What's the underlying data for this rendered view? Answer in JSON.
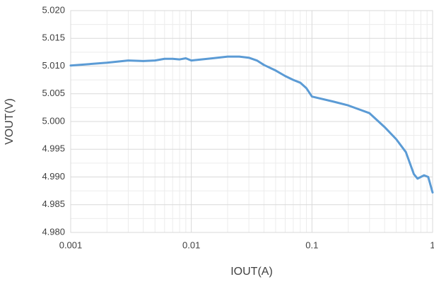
{
  "chart_data": {
    "type": "line",
    "x_label": "IOUT(A)",
    "y_label": "VOUT(V)",
    "x": [
      0.001,
      0.002,
      0.003,
      0.004,
      0.005,
      0.006,
      0.007,
      0.008,
      0.009,
      0.01,
      0.015,
      0.02,
      0.025,
      0.03,
      0.035,
      0.04,
      0.05,
      0.06,
      0.07,
      0.08,
      0.09,
      0.1,
      0.15,
      0.2,
      0.3,
      0.4,
      0.5,
      0.6,
      0.7,
      0.75,
      0.85,
      0.92,
      1
    ],
    "series": [
      {
        "color": "#5b9bd5",
        "values": [
          5.0101,
          5.0106,
          5.011,
          5.0109,
          5.011,
          5.0113,
          5.0113,
          5.0112,
          5.0114,
          5.011,
          5.0114,
          5.0117,
          5.0117,
          5.0115,
          5.011,
          5.0102,
          5.0092,
          5.0082,
          5.0075,
          5.007,
          5.006,
          5.0045,
          5.0036,
          5.0029,
          5.0015,
          4.999,
          4.9968,
          4.9945,
          4.9905,
          4.9897,
          4.9903,
          4.99,
          4.9872
        ]
      }
    ],
    "xlog": true,
    "xlim": [
      0.001,
      1
    ],
    "xticks": [
      0.001,
      0.01,
      0.1,
      1
    ],
    "ylim": [
      4.98,
      5.02
    ],
    "yticks": [
      {
        "value": 4.98,
        "label": "4.980"
      },
      {
        "value": 4.985,
        "label": "4.985"
      },
      {
        "value": 4.99,
        "label": "4.990"
      },
      {
        "value": 4.995,
        "label": "4.995"
      },
      {
        "value": 5.0,
        "label": "5.000"
      },
      {
        "value": 5.005,
        "label": "5.005"
      },
      {
        "value": 5.01,
        "label": "5.010"
      },
      {
        "value": 5.015,
        "label": "5.015"
      },
      {
        "value": 5.02,
        "label": "5.020"
      }
    ],
    "grid": true,
    "minor_grid": true
  }
}
